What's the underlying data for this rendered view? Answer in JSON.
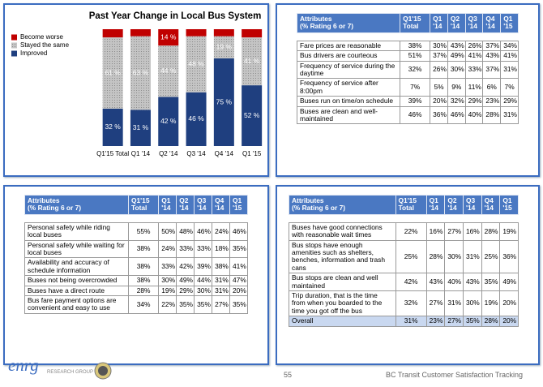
{
  "chart_data": {
    "type": "stacked_bar",
    "title": "Past Year Change in Local Bus System",
    "categories": [
      "Q1'15 Total",
      "Q1 '14",
      "Q2 '14",
      "Q3 '14",
      "Q4 '14",
      "Q1 '15"
    ],
    "series": [
      {
        "name": "Become worse",
        "color": "#c00000",
        "values": [
          7,
          6,
          14,
          6,
          6,
          7
        ],
        "value_labels": [
          null,
          null,
          "14 %",
          null,
          null,
          null
        ]
      },
      {
        "name": "Stayed the same",
        "color": "#b3b3b3",
        "values": [
          61,
          63,
          44,
          48,
          19,
          41
        ],
        "value_labels": [
          "61 %",
          "63 %",
          "44 %",
          "48 %",
          "19 %",
          "41 %"
        ]
      },
      {
        "name": "Improved",
        "color": "#1f3f7f",
        "values": [
          32,
          31,
          42,
          46,
          75,
          52
        ],
        "value_labels": [
          "32 %",
          "31 %",
          "42 %",
          "46 %",
          "75 %",
          "52 %"
        ]
      }
    ],
    "ylim": [
      0,
      100
    ],
    "legend": "top-left"
  },
  "tables": [
    {
      "header": [
        [
          "Attributes",
          "(% Rating 6 or 7)"
        ],
        [
          "Q1'15",
          "Total"
        ],
        [
          "Q1",
          "'14"
        ],
        [
          "Q2",
          "'14"
        ],
        [
          "Q3",
          "'14"
        ],
        [
          "Q4",
          "'14"
        ],
        [
          "Q1",
          "'15"
        ]
      ],
      "rows": [
        [
          "Fare prices are reasonable",
          "38%",
          "30%",
          "43%",
          "26%",
          "37%",
          "34%"
        ],
        [
          "Bus drivers are courteous",
          "51%",
          "37%",
          "49%",
          "41%",
          "43%",
          "41%"
        ],
        [
          "Frequency of service during the daytime",
          "32%",
          "26%",
          "30%",
          "33%",
          "37%",
          "31%"
        ],
        [
          "Frequency of service after 8:00pm",
          "7%",
          "5%",
          "9%",
          "11%",
          "6%",
          "7%"
        ],
        [
          "Buses run on time/on schedule",
          "39%",
          "20%",
          "32%",
          "29%",
          "23%",
          "29%"
        ],
        [
          "Buses are clean and well-maintained",
          "46%",
          "36%",
          "46%",
          "40%",
          "28%",
          "31%"
        ]
      ]
    },
    {
      "header": [
        [
          "Attributes",
          "(% Rating 6 or 7)"
        ],
        [
          "Q1'15",
          "Total"
        ],
        [
          "Q1",
          "'14"
        ],
        [
          "Q2",
          "'14"
        ],
        [
          "Q3",
          "'14"
        ],
        [
          "Q4",
          "'14"
        ],
        [
          "Q1",
          "'15"
        ]
      ],
      "rows": [
        [
          "Personal safety while riding local buses",
          "55%",
          "50%",
          "48%",
          "46%",
          "24%",
          "46%"
        ],
        [
          "Personal safety while waiting for local buses",
          "38%",
          "24%",
          "33%",
          "33%",
          "18%",
          "35%"
        ],
        [
          "Availability and accuracy of schedule information",
          "38%",
          "33%",
          "42%",
          "39%",
          "38%",
          "41%"
        ],
        [
          "Buses not being overcrowded",
          "38%",
          "30%",
          "49%",
          "44%",
          "31%",
          "47%"
        ],
        [
          "Buses have a direct route",
          "28%",
          "19%",
          "29%",
          "30%",
          "31%",
          "20%"
        ],
        [
          "Bus fare payment options are convenient and easy to use",
          "34%",
          "22%",
          "35%",
          "35%",
          "27%",
          "35%"
        ]
      ]
    },
    {
      "header": [
        [
          "Attributes",
          "(% Rating 6 or 7)"
        ],
        [
          "Q1'15",
          "Total"
        ],
        [
          "Q1",
          "'14"
        ],
        [
          "Q2",
          "'14"
        ],
        [
          "Q3",
          "'14"
        ],
        [
          "Q4",
          "'14"
        ],
        [
          "Q1",
          "'15"
        ]
      ],
      "rows": [
        [
          "Buses have good connections with reasonable wait times",
          "22%",
          "16%",
          "27%",
          "16%",
          "28%",
          "19%"
        ],
        [
          "Bus stops have enough amenities such as shelters, benches, information and trash cans",
          "25%",
          "28%",
          "30%",
          "31%",
          "25%",
          "36%"
        ],
        [
          "Bus stops are clean and well maintained",
          "42%",
          "43%",
          "40%",
          "43%",
          "35%",
          "49%"
        ],
        [
          "Trip duration, that is the time from when you boarded to the time you got off the bus",
          "32%",
          "27%",
          "31%",
          "30%",
          "19%",
          "20%"
        ],
        [
          "Overall",
          "31%",
          "23%",
          "27%",
          "35%",
          "28%",
          "20%"
        ]
      ]
    }
  ],
  "footer": {
    "logo": "enrg",
    "logo_sub": "RESEARCH GROUP",
    "page": "55",
    "title": "BC Transit Customer Satisfaction Tracking"
  }
}
